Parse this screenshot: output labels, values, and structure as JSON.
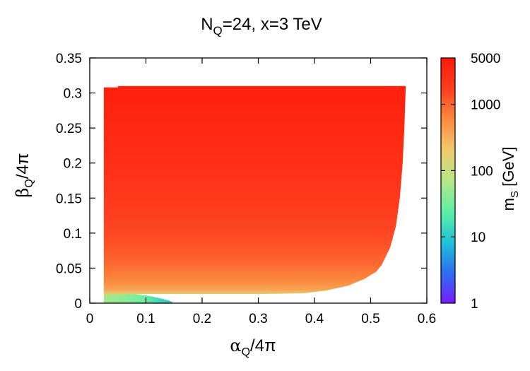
{
  "chart_data": {
    "type": "heatmap",
    "title": {
      "base": "N",
      "sub": "Q",
      "rest": "=24, x=3 TeV"
    },
    "xlabel": {
      "greek": "α",
      "sub": "Q",
      "rest": "/4π"
    },
    "ylabel": {
      "greek": "β",
      "sub": "Q",
      "rest": "/4π"
    },
    "colorbar_label": {
      "base": "m",
      "sub": "S",
      "rest": " [GeV]"
    },
    "xlim": [
      0,
      0.6
    ],
    "ylim": [
      0,
      0.35
    ],
    "x_ticks": [
      0,
      0.1,
      0.2,
      0.3,
      0.4,
      0.5,
      0.6
    ],
    "x_tick_labels": [
      "0",
      "0.1",
      "0.2",
      "0.3",
      "0.4",
      "0.5",
      "0.6"
    ],
    "y_ticks": [
      0,
      0.05,
      0.1,
      0.15,
      0.2,
      0.25,
      0.3,
      0.35
    ],
    "y_tick_labels": [
      "0",
      "0.05",
      "0.1",
      "0.15",
      "0.2",
      "0.25",
      "0.3",
      "0.35"
    ],
    "color_scale": "log",
    "color_range": [
      1,
      5000
    ],
    "colorbar_ticks": [
      1,
      10,
      100,
      1000,
      5000
    ],
    "colorbar_tick_labels": [
      "1",
      "10",
      "100",
      "1000",
      "5000"
    ],
    "colormap": [
      "#7a1cff",
      "#2c70ee",
      "#1fc4d6",
      "#5fefa6",
      "#b6e886",
      "#f2c86e",
      "#fb8a3e",
      "#ff3d1f",
      "#ff1a0a"
    ],
    "grid": false,
    "region": {
      "x_min": 0.025,
      "y_max": 0.31,
      "y_step_at_x_0_05": 0.308,
      "lower_boundary": [
        [
          0.025,
          0.0
        ],
        [
          0.15,
          0.0
        ],
        [
          0.14,
          0.004
        ],
        [
          0.12,
          0.008
        ],
        [
          0.1,
          0.011
        ],
        [
          0.08,
          0.0125
        ],
        [
          0.1,
          0.013
        ],
        [
          0.2,
          0.013
        ],
        [
          0.3,
          0.013
        ],
        [
          0.38,
          0.014
        ],
        [
          0.42,
          0.018
        ],
        [
          0.46,
          0.025
        ],
        [
          0.49,
          0.035
        ],
        [
          0.51,
          0.045
        ],
        [
          0.52,
          0.055
        ],
        [
          0.535,
          0.08
        ],
        [
          0.545,
          0.11
        ],
        [
          0.552,
          0.15
        ],
        [
          0.557,
          0.2
        ],
        [
          0.56,
          0.25
        ],
        [
          0.5625,
          0.31
        ]
      ],
      "mass_levels": [
        {
          "y": 0.0,
          "m": 60
        },
        {
          "y": 0.005,
          "m": 90
        },
        {
          "y": 0.012,
          "m": 150
        },
        {
          "y": 0.02,
          "m": 400
        },
        {
          "y": 0.035,
          "m": 650
        },
        {
          "y": 0.06,
          "m": 1000
        },
        {
          "y": 0.1,
          "m": 1500
        },
        {
          "y": 0.15,
          "m": 2000
        },
        {
          "y": 0.2,
          "m": 2600
        },
        {
          "y": 0.25,
          "m": 3300
        },
        {
          "y": 0.31,
          "m": 4200
        }
      ],
      "low_strip": {
        "x_min": 0.025,
        "x_max": 0.15,
        "y_max": 0.013,
        "m_left": 60,
        "m_right": 8
      }
    }
  }
}
